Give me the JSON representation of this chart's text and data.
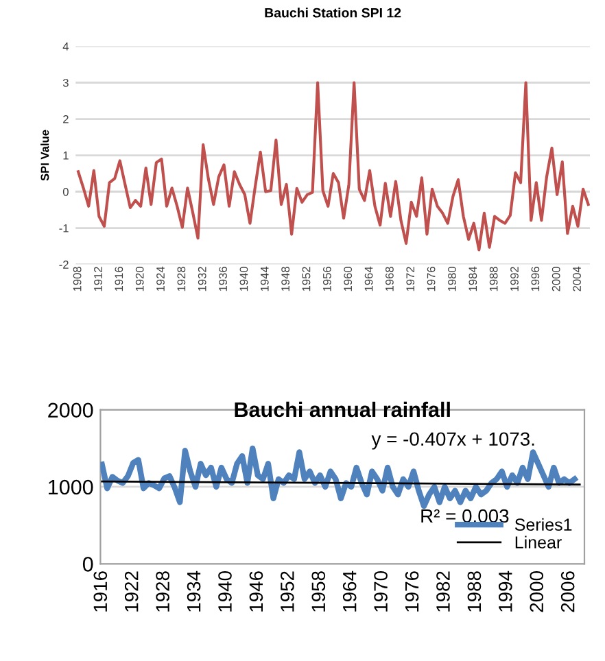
{
  "chart_data": [
    {
      "type": "line",
      "title": "Bauchi Station SPI 12",
      "ylabel": "SPI Value",
      "x": [
        1908,
        1909,
        1910,
        1911,
        1912,
        1913,
        1914,
        1915,
        1916,
        1917,
        1918,
        1919,
        1920,
        1921,
        1922,
        1923,
        1924,
        1925,
        1926,
        1927,
        1928,
        1929,
        1930,
        1931,
        1932,
        1933,
        1934,
        1935,
        1936,
        1937,
        1938,
        1939,
        1940,
        1941,
        1942,
        1943,
        1944,
        1945,
        1946,
        1947,
        1948,
        1949,
        1950,
        1951,
        1952,
        1953,
        1954,
        1955,
        1956,
        1957,
        1958,
        1959,
        1960,
        1961,
        1962,
        1963,
        1964,
        1965,
        1966,
        1967,
        1968,
        1969,
        1970,
        1971,
        1972,
        1973,
        1974,
        1975,
        1976,
        1977,
        1978,
        1979,
        1980,
        1981,
        1982,
        1983,
        1984,
        1985,
        1986,
        1987,
        1988,
        1989,
        1990,
        1991,
        1992,
        1993,
        1994,
        1995,
        1996,
        1997,
        1998,
        1999,
        2000,
        2001,
        2002,
        2003,
        2004,
        2005,
        2006
      ],
      "series": [
        {
          "color": "#c0504d",
          "values": [
            0.55,
            0.1,
            -0.4,
            0.58,
            -0.68,
            -0.95,
            0.25,
            0.36,
            0.85,
            0.2,
            -0.44,
            -0.24,
            -0.4,
            0.65,
            -0.35,
            0.8,
            0.9,
            -0.4,
            0.1,
            -0.4,
            -0.98,
            0.1,
            -0.57,
            -1.28,
            1.29,
            0.36,
            -0.35,
            0.41,
            0.74,
            -0.4,
            0.55,
            0.2,
            -0.08,
            -0.87,
            0.14,
            1.09,
            0,
            0.03,
            1.42,
            -0.35,
            0.2,
            -1.17,
            0.09,
            -0.29,
            -0.08,
            -0.02,
            3,
            0.03,
            -0.4,
            0.5,
            0.25,
            -0.73,
            0.2,
            3,
            0.07,
            -0.24,
            0.58,
            -0.4,
            -0.92,
            0.23,
            -0.68,
            0.28,
            -0.79,
            -1.42,
            -0.29,
            -0.68,
            0.38,
            -1.17,
            0.07,
            -0.4,
            -0.59,
            -0.87,
            -0.13,
            0.33,
            -0.68,
            -1.31,
            -0.87,
            -1.6,
            -0.59,
            -1.53,
            -0.68,
            -0.79,
            -0.87,
            -0.65,
            0.52,
            0.25,
            3,
            -0.79,
            0.25,
            -0.79,
            0.41,
            1.2,
            -0.08,
            0.82,
            -1.15,
            -0.4,
            -0.95,
            0.07,
            -0.35
          ]
        }
      ],
      "xlim": [
        1907.5,
        2006.3
      ],
      "xticks": [
        1908,
        1912,
        1916,
        1920,
        1924,
        1928,
        1932,
        1936,
        1940,
        1944,
        1948,
        1952,
        1956,
        1960,
        1964,
        1968,
        1972,
        1976,
        1980,
        1984,
        1988,
        1992,
        1996,
        2000,
        2004
      ],
      "ylim": [
        -2,
        4
      ],
      "yticks": [
        -2,
        -1,
        0,
        1,
        2,
        3,
        4
      ],
      "grid": "y",
      "legend": false
    },
    {
      "type": "line",
      "title": "Bauchi annual rainfall",
      "annotations": [
        "y = -0.407x + 1073.",
        "R² = 0.003"
      ],
      "series": [
        {
          "name": "Series1",
          "color": "#4f81bd",
          "x": [
            1916,
            1917,
            1918,
            1919,
            1920,
            1921,
            1922,
            1923,
            1924,
            1925,
            1926,
            1927,
            1928,
            1929,
            1930,
            1931,
            1932,
            1933,
            1934,
            1935,
            1936,
            1937,
            1938,
            1939,
            1940,
            1941,
            1942,
            1943,
            1944,
            1945,
            1946,
            1947,
            1948,
            1949,
            1950,
            1951,
            1952,
            1953,
            1954,
            1955,
            1956,
            1957,
            1958,
            1959,
            1960,
            1961,
            1962,
            1963,
            1964,
            1965,
            1966,
            1967,
            1968,
            1969,
            1970,
            1971,
            1972,
            1973,
            1974,
            1975,
            1976,
            1977,
            1978,
            1979,
            1980,
            1981,
            1982,
            1983,
            1984,
            1985,
            1986,
            1987,
            1988,
            1989,
            1990,
            1991,
            1992,
            1993,
            1994,
            1995,
            1996,
            1997,
            1998,
            1999,
            2000,
            2001,
            2002,
            2003,
            2004,
            2005,
            2006,
            2007
          ],
          "values": [
            1290,
            980,
            1130,
            1080,
            1050,
            1140,
            1310,
            1350,
            980,
            1050,
            1020,
            980,
            1110,
            1140,
            990,
            800,
            1470,
            1200,
            1000,
            1300,
            1150,
            1250,
            1000,
            1250,
            1100,
            1050,
            1300,
            1400,
            1050,
            1500,
            1150,
            1100,
            1300,
            850,
            1100,
            1050,
            1150,
            1100,
            1450,
            1100,
            1200,
            1050,
            1150,
            1000,
            1200,
            1100,
            850,
            1050,
            1000,
            1250,
            1050,
            900,
            1200,
            1100,
            950,
            1250,
            1000,
            900,
            1100,
            1000,
            1200,
            950,
            750,
            900,
            1000,
            800,
            1000,
            850,
            950,
            800,
            950,
            850,
            1000,
            900,
            950,
            1050,
            1100,
            1200,
            1000,
            1150,
            1050,
            1250,
            1100,
            1450,
            1300,
            1150,
            1000,
            1250,
            1050,
            1100,
            1050,
            1100
          ]
        },
        {
          "name": "Linear",
          "color": "#000000",
          "x": [
            1916,
            2008
          ],
          "values": [
            1070,
            1030
          ]
        }
      ],
      "xlim": [
        1915.7,
        2008.9
      ],
      "xticks": [
        1916,
        1922,
        1928,
        1934,
        1940,
        1946,
        1952,
        1958,
        1964,
        1970,
        1976,
        1982,
        1988,
        1994,
        2000,
        2006
      ],
      "ylim": [
        0,
        2000
      ],
      "yticks": [
        0,
        1000,
        2000
      ],
      "grid": "y",
      "legend": "bottom right"
    }
  ]
}
